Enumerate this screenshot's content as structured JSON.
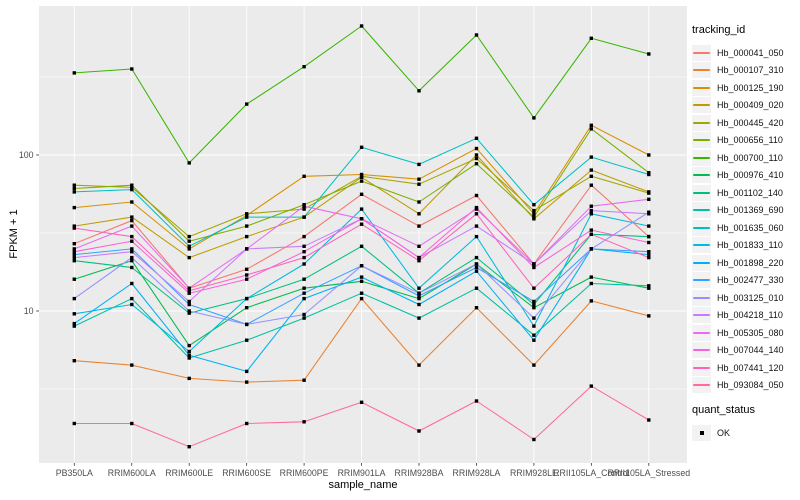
{
  "figure": {
    "y_axis_title": "FPKM + 1",
    "x_axis_title": "sample_name",
    "legend": {
      "tracking_title": "tracking_id",
      "quant_title": "quant_status",
      "quant_label": "OK",
      "quant_marker": "black-square"
    }
  },
  "colors": {
    "panel_bg": "#EBEBEB",
    "grid_major": "#FFFFFF",
    "grid_minor": "#FFFFFF",
    "tick_mark": "#333333",
    "tick_label": "#4D4D4D",
    "point": "#000000",
    "legend_key_bg": "#F2F2F2",
    "text": "#000000"
  },
  "chart_data": {
    "type": "line",
    "title": "",
    "xlabel": "sample_name",
    "ylabel": "FPKM + 1",
    "y_scale": "log10",
    "ylim": [
      1.05,
      900
    ],
    "y_ticks": [
      100,
      10
    ],
    "y_minor_ticks": [
      3.162,
      31.62,
      316.2
    ],
    "grid": true,
    "legend_position": "right",
    "point_marker": "black-square",
    "categories": [
      "PB350LA",
      "RRIM600LA",
      "RRIM600LE",
      "RRIM600SE",
      "RRIM600PE",
      "RRIM901LA",
      "RRIM928BA",
      "RRIM928LA",
      "RRIM928LE",
      "RRII105LA_Control",
      "RRII105LA_Stressed"
    ],
    "series": [
      {
        "name": "Hb_000041_050",
        "color": "#F8766D",
        "values": [
          27,
          38,
          14,
          18.5,
          30,
          56,
          35,
          55,
          20,
          64,
          30
        ]
      },
      {
        "name": "Hb_000107_310",
        "color": "#EA8331",
        "values": [
          4.8,
          4.5,
          3.7,
          3.5,
          3.6,
          12,
          4.5,
          10.5,
          4.5,
          11.6,
          9.3
        ]
      },
      {
        "name": "Hb_000125_190",
        "color": "#D89000",
        "values": [
          46,
          50,
          25,
          41,
          73,
          75,
          70,
          110,
          42,
          155,
          100
        ]
      },
      {
        "name": "Hb_000409_020",
        "color": "#C09B00",
        "values": [
          35,
          40,
          22,
          30,
          40,
          72,
          42,
          100,
          39,
          80,
          58
        ]
      },
      {
        "name": "Hb_000445_420",
        "color": "#A3A500",
        "values": [
          64,
          62,
          30,
          42,
          45,
          73,
          65,
          95,
          44,
          73,
          57
        ]
      },
      {
        "name": "Hb_000656_110",
        "color": "#7CAE00",
        "values": [
          61,
          64,
          28,
          35,
          48,
          68,
          50,
          88,
          40,
          147,
          77
        ]
      },
      {
        "name": "Hb_000700_110",
        "color": "#39B600",
        "values": [
          336,
          356,
          89,
          212,
          368,
          671,
          258,
          588,
          173,
          560,
          444
        ]
      },
      {
        "name": "Hb_000976_410",
        "color": "#00BB4E",
        "values": [
          16,
          21,
          6,
          10.5,
          14,
          15.5,
          12,
          20,
          10.5,
          16.5,
          14
        ]
      },
      {
        "name": "Hb_001102_140",
        "color": "#00BF7D",
        "values": [
          21,
          19,
          9.7,
          12,
          16,
          26,
          13,
          22,
          11,
          31,
          30
        ]
      },
      {
        "name": "Hb_001369_690",
        "color": "#00C1A3",
        "values": [
          8,
          12,
          5,
          6.5,
          9,
          13,
          9,
          14,
          7,
          15,
          14.5
        ]
      },
      {
        "name": "Hb_001635_060",
        "color": "#00BFC4",
        "values": [
          58,
          60,
          26,
          40,
          40,
          112,
          87,
          128,
          48,
          97,
          75
        ]
      },
      {
        "name": "Hb_001833_110",
        "color": "#00BAE0",
        "values": [
          9.6,
          11,
          5.5,
          12,
          20,
          45,
          14,
          30,
          8,
          42,
          35
        ]
      },
      {
        "name": "Hb_001898_220",
        "color": "#00B0F6",
        "values": [
          8.3,
          15,
          5.2,
          4.1,
          12,
          16.5,
          11,
          18,
          6.5,
          25,
          23
        ]
      },
      {
        "name": "Hb_002477_330",
        "color": "#35A2FF",
        "values": [
          23,
          25,
          11,
          8.2,
          13,
          19.5,
          12.5,
          19,
          11.5,
          25,
          24
        ]
      },
      {
        "name": "Hb_003125_010",
        "color": "#9590FF",
        "values": [
          12,
          22,
          10,
          8.2,
          9.5,
          19.5,
          13,
          20,
          9,
          25,
          43
        ]
      },
      {
        "name": "Hb_004218_110",
        "color": "#C77CFF",
        "values": [
          22,
          24,
          11.5,
          25,
          26,
          39,
          22,
          35,
          20,
          44,
          42
        ]
      },
      {
        "name": "Hb_005305_080",
        "color": "#E76BF3",
        "values": [
          25,
          35,
          14,
          25,
          47,
          39,
          26,
          45,
          20,
          47,
          52
        ]
      },
      {
        "name": "Hb_007044_140",
        "color": "#FA62DB",
        "values": [
          24,
          28,
          13,
          16,
          24,
          39,
          22,
          46,
          19,
          33,
          27.5
        ]
      },
      {
        "name": "Hb_007441_120",
        "color": "#FF62BC",
        "values": [
          34,
          30,
          13.5,
          17,
          22,
          36,
          21,
          42,
          14,
          31,
          22
        ]
      },
      {
        "name": "Hb_093084_050",
        "color": "#FF6A98",
        "values": [
          1.9,
          1.9,
          1.35,
          1.9,
          1.95,
          2.6,
          1.7,
          2.65,
          1.5,
          3.3,
          2.0
        ]
      }
    ]
  }
}
